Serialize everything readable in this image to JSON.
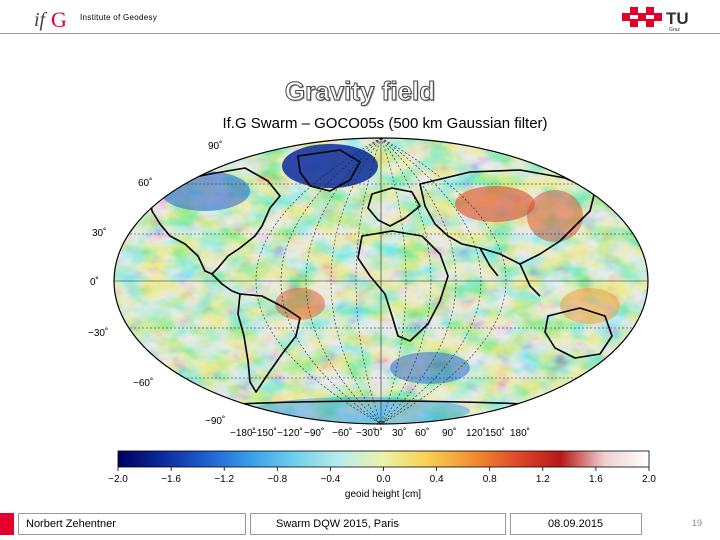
{
  "header": {
    "logo_text": "ifG",
    "institute": "Institute of Geodesy",
    "tu_logo_main": "TU",
    "tu_logo_sub": "Graz"
  },
  "slide": {
    "title": "Gravity field",
    "subtitle": "If.G Swarm – GOCO05s (500 km Gaussian filter)"
  },
  "map": {
    "lat_labels": [
      "90˚",
      "60˚",
      "30˚",
      "0˚",
      "−30˚",
      "−60˚",
      "−90˚"
    ],
    "lon_labels": [
      "−180˚",
      "−150˚",
      "−120˚",
      "−90˚",
      "−60˚",
      "−30˚",
      "0˚",
      "30˚",
      "60˚",
      "90˚",
      "120˚",
      "150˚",
      "180˚"
    ]
  },
  "colorbar": {
    "tick_labels": [
      "−2.0",
      "−1.6",
      "−1.2",
      "−0.8",
      "−0.4",
      "0.0",
      "0.4",
      "0.8",
      "1.2",
      "1.6",
      "2.0"
    ],
    "label": "geoid height [cm]",
    "colors": [
      "#000060",
      "#0c2a9c",
      "#1f5fd0",
      "#3a9ee8",
      "#6fd0ec",
      "#b8ecec",
      "#ecf2a8",
      "#f8d050",
      "#f49030",
      "#e04a28",
      "#b81818",
      "#f0d0d0",
      "#ffffff"
    ]
  },
  "footer": {
    "author": "Norbert Zehentner",
    "event": "Swarm DQW 2015, Paris",
    "date": "08.09.2015",
    "page": "19"
  },
  "colors": {
    "accent_red": "#e4002b",
    "ocean_base": "#8fd4c8",
    "land_outline": "#000000"
  }
}
